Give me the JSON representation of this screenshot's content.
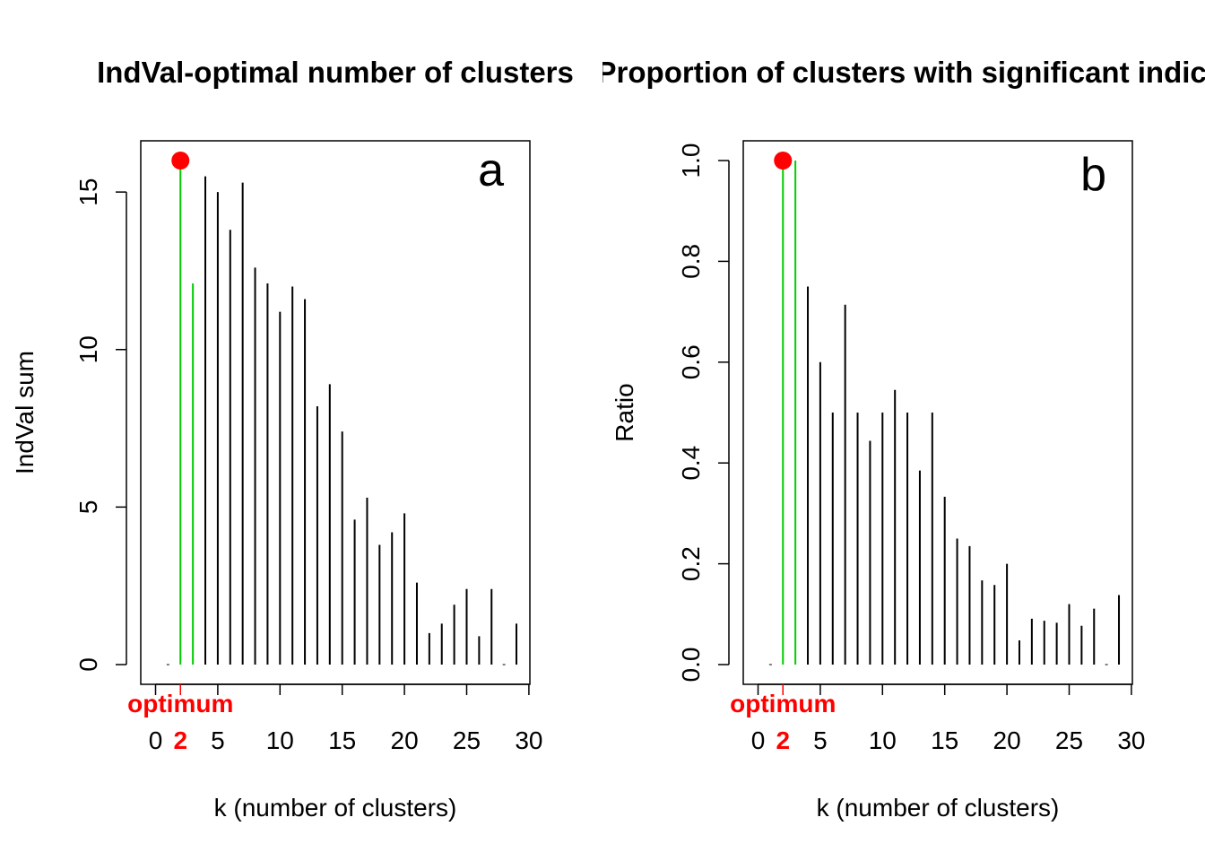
{
  "chart_data": [
    {
      "type": "bar",
      "title": "IndVal-optimal number of clusters",
      "panel_label": "a",
      "xlabel": "k (number of clusters)",
      "ylabel": "IndVal sum",
      "xlim": [
        0,
        30
      ],
      "ylim": [
        0,
        16
      ],
      "x_ticks": [
        "0",
        "5",
        "10",
        "15",
        "20",
        "25",
        "30"
      ],
      "y_ticks": [
        "0",
        "5",
        "10",
        "15"
      ],
      "optimum": {
        "k": 2,
        "value": 16.0,
        "label": "optimum",
        "tick_label": "2"
      },
      "highlight_color": "#00cc00",
      "optimum_color": "#ff0000",
      "bar_color": "#000000",
      "x": [
        2,
        3,
        4,
        5,
        6,
        7,
        8,
        9,
        10,
        11,
        12,
        13,
        14,
        15,
        16,
        17,
        18,
        19,
        20,
        21,
        22,
        23,
        24,
        25,
        26,
        27,
        28,
        29
      ],
      "values": [
        16.0,
        12.1,
        15.5,
        15.0,
        13.8,
        15.3,
        12.6,
        12.1,
        11.2,
        12.0,
        11.6,
        8.2,
        8.9,
        7.4,
        4.6,
        5.3,
        3.8,
        4.2,
        4.8,
        2.6,
        1.0,
        1.3,
        1.9,
        2.4,
        0.9,
        2.4,
        0.0,
        1.3
      ],
      "highlight_x": [
        2,
        3
      ]
    },
    {
      "type": "bar",
      "title": "Proportion of clusters with significant indicators",
      "panel_label": "b",
      "xlabel": "k (number of clusters)",
      "ylabel": "Ratio",
      "xlim": [
        0,
        30
      ],
      "ylim": [
        0,
        1
      ],
      "x_ticks": [
        "0",
        "5",
        "10",
        "15",
        "20",
        "25",
        "30"
      ],
      "y_ticks": [
        "0.0",
        "0.2",
        "0.4",
        "0.6",
        "0.8",
        "1.0"
      ],
      "optimum": {
        "k": 2,
        "value": 1.0,
        "label": "optimum",
        "tick_label": "2"
      },
      "highlight_color": "#00cc00",
      "optimum_color": "#ff0000",
      "bar_color": "#000000",
      "x": [
        2,
        3,
        4,
        5,
        6,
        7,
        8,
        9,
        10,
        11,
        12,
        13,
        14,
        15,
        16,
        17,
        18,
        19,
        20,
        21,
        22,
        23,
        24,
        25,
        26,
        27,
        28,
        29
      ],
      "values": [
        1.0,
        1.0,
        0.75,
        0.6,
        0.5,
        0.714,
        0.5,
        0.444,
        0.5,
        0.545,
        0.5,
        0.385,
        0.5,
        0.333,
        0.25,
        0.235,
        0.167,
        0.158,
        0.2,
        0.048,
        0.091,
        0.087,
        0.083,
        0.12,
        0.077,
        0.111,
        0.0,
        0.138
      ],
      "highlight_x": [
        2,
        3
      ]
    }
  ]
}
